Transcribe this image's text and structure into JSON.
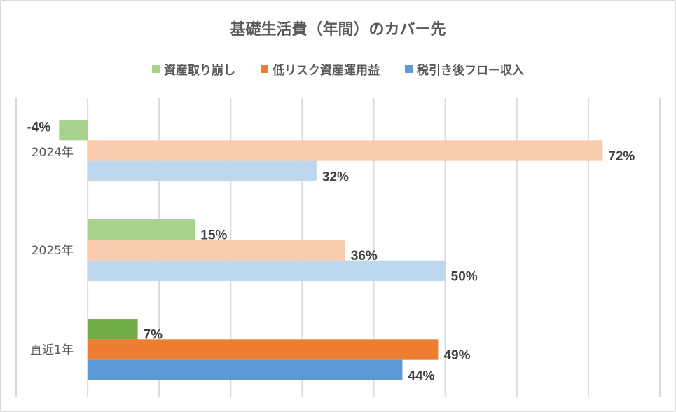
{
  "chart_data": {
    "type": "bar",
    "orientation": "horizontal",
    "title": "基礎生活費（年間）のカバー先",
    "categories": [
      "2024年",
      "2025年",
      "直近1年"
    ],
    "series": [
      {
        "name": "資産取り崩し",
        "values": [
          -4,
          15,
          7
        ],
        "labels": [
          "-4%",
          "15%",
          "7%"
        ],
        "color": "#70ad47",
        "light_color": "#a9d18e"
      },
      {
        "name": "低リスク資産運用益",
        "values": [
          72,
          36,
          49
        ],
        "labels": [
          "72%",
          "36%",
          "49%"
        ],
        "color": "#ed7d31",
        "light_color": "#f8cbad"
      },
      {
        "name": "税引き後フロー収入",
        "values": [
          32,
          50,
          44
        ],
        "labels": [
          "32%",
          "50%",
          "44%"
        ],
        "color": "#5b9bd5",
        "light_color": "#bdd7ee"
      }
    ],
    "highlighted_category": "直近1年",
    "legend_colors": [
      "#a9d18e",
      "#ed7d31",
      "#5b9bd5"
    ],
    "xlim": [
      -10,
      80
    ],
    "grid": true,
    "legend": "top",
    "xlabel": "",
    "ylabel": ""
  }
}
